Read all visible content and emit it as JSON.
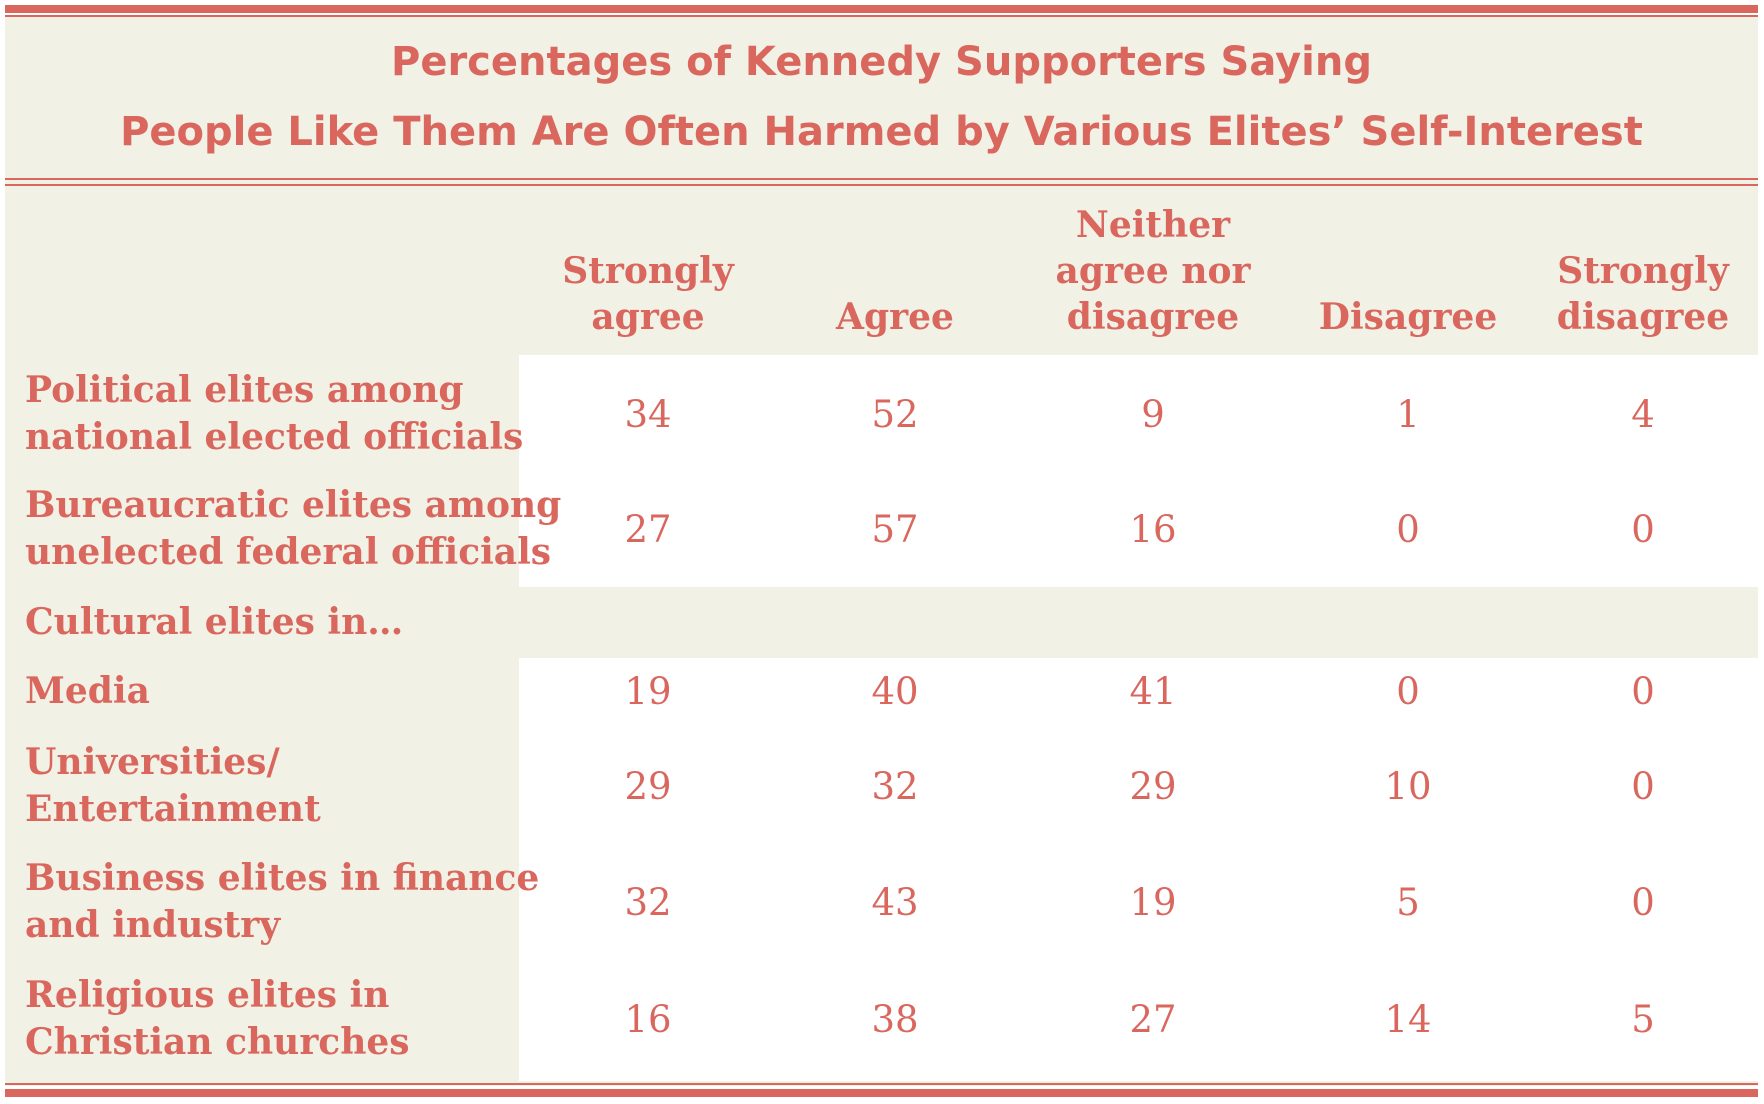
{
  "title_lines": [
    "Percentages of Kennedy Supporters Saying",
    "People Like Them Are Often Harmed by Various Elites’ Self-Interest"
  ],
  "columns": [
    [
      "Strongly",
      "agree"
    ],
    [
      "Agree"
    ],
    [
      "Neither",
      "agree nor",
      "disagree"
    ],
    [
      "Disagree"
    ],
    [
      "Strongly",
      "disagree"
    ]
  ],
  "rows": [
    {
      "label": [
        "Political elites among",
        "national elected officials"
      ],
      "values": [
        "34",
        "52",
        "9",
        "1",
        "4"
      ]
    },
    {
      "label": [
        "Bureaucratic elites among",
        "unelected federal officials"
      ],
      "values": [
        "27",
        "57",
        "16",
        "0",
        "0"
      ]
    },
    {
      "label": [
        "Cultural elites in…"
      ],
      "values": []
    },
    {
      "label": [
        "Media"
      ],
      "values": [
        "19",
        "40",
        "41",
        "0",
        "0"
      ]
    },
    {
      "label": [
        "Universities/",
        "Entertainment"
      ],
      "values": [
        "29",
        "32",
        "29",
        "10",
        "0"
      ]
    },
    {
      "label": [
        "Business elites in finance",
        "and industry"
      ],
      "values": [
        "32",
        "43",
        "19",
        "5",
        "0"
      ]
    },
    {
      "label": [
        "Religious elites in",
        "Christian churches"
      ],
      "values": [
        "16",
        "38",
        "27",
        "14",
        "5"
      ]
    }
  ],
  "colors": {
    "accent": "#d9675e",
    "background": "#f2f1e6",
    "cell_background": "#ffffff"
  },
  "chart_data": {
    "type": "table",
    "title": "Percentages of Kennedy Supporters Saying People Like Them Are Often Harmed by Various Elites’ Self-Interest",
    "columns": [
      "Strongly agree",
      "Agree",
      "Neither agree nor disagree",
      "Disagree",
      "Strongly disagree"
    ],
    "rows": [
      {
        "label": "Political elites among national elected officials",
        "values": [
          34,
          52,
          9,
          1,
          4
        ]
      },
      {
        "label": "Bureaucratic elites among unelected federal officials",
        "values": [
          27,
          57,
          16,
          0,
          0
        ]
      },
      {
        "label": "Cultural elites in…",
        "values": []
      },
      {
        "label": "Media",
        "values": [
          19,
          40,
          41,
          0,
          0
        ]
      },
      {
        "label": "Universities/ Entertainment",
        "values": [
          29,
          32,
          29,
          10,
          0
        ]
      },
      {
        "label": "Business elites in finance and industry",
        "values": [
          32,
          43,
          19,
          5,
          0
        ]
      },
      {
        "label": "Religious elites in Christian churches",
        "values": [
          16,
          38,
          27,
          14,
          5
        ]
      }
    ]
  }
}
